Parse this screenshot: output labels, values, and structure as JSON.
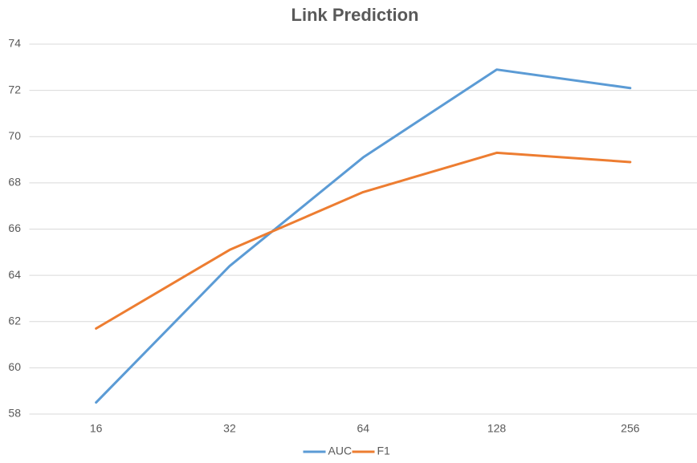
{
  "chart_data": {
    "type": "line",
    "title": "Link Prediction",
    "categories": [
      "16",
      "32",
      "64",
      "128",
      "256"
    ],
    "series": [
      {
        "name": "AUC",
        "color": "#5b9bd5",
        "values": [
          58.5,
          64.4,
          69.1,
          72.9,
          72.1
        ]
      },
      {
        "name": "F1",
        "color": "#ed7d31",
        "values": [
          61.7,
          65.1,
          67.6,
          69.3,
          68.9
        ]
      }
    ],
    "ylim": [
      58,
      74
    ],
    "yticks": [
      58,
      60,
      62,
      64,
      66,
      68,
      70,
      72,
      74
    ],
    "grid": true,
    "legend": "bottom"
  }
}
